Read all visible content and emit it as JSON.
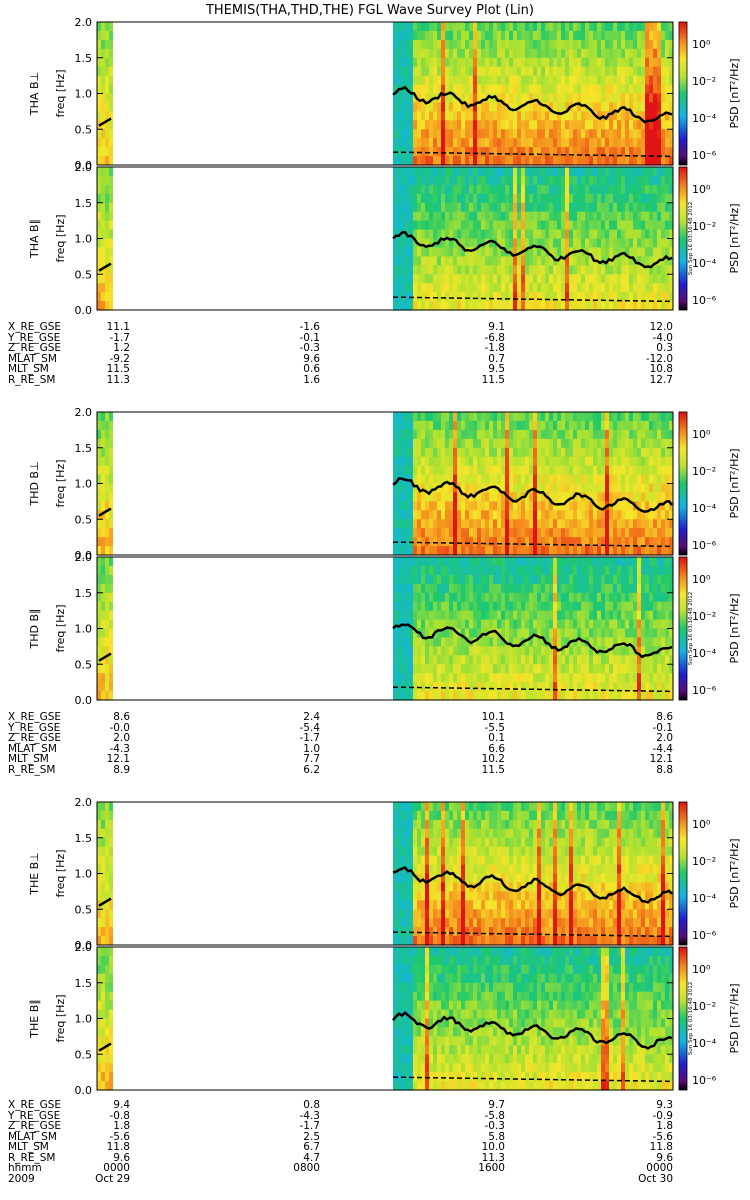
{
  "title": "THEMIS(THA,THD,THE) FGL Wave Survey Plot (Lin)",
  "colors": {
    "panel_border": "#000000",
    "trace": "#000000"
  },
  "chart_data": {
    "type": "heatmap",
    "x_axis": {
      "ticks": [
        "0000",
        "0800",
        "1600",
        "0000"
      ],
      "unit_label": "hhmm",
      "date_label_left": "2009",
      "dates": [
        "Oct 29",
        "Oct 30"
      ]
    },
    "colorbar": {
      "label": "PSD [nT²/Hz]",
      "tick_labels": [
        "10⁰",
        "10⁻²",
        "10⁻⁴",
        "10⁻⁶"
      ],
      "scale": "log",
      "stamp": "Sun Sep 16 03:16:48 2012"
    },
    "panels": [
      {
        "ylabel_probe": "THA B⊥",
        "ylabel_axis": "freq [Hz]",
        "ylim": [
          0,
          2.0
        ],
        "yticks": [
          "0.0",
          "0.5",
          "1.0",
          "1.5",
          "2.0"
        ],
        "kind": "perp",
        "stamp": false
      },
      {
        "ylabel_probe": "THA B∥",
        "ylabel_axis": "freq [Hz]",
        "ylim": [
          0,
          2.0
        ],
        "yticks": [
          "0.0",
          "0.5",
          "1.0",
          "1.5",
          "2.0"
        ],
        "kind": "par",
        "stamp": true
      },
      {
        "ylabel_probe": "THD B⊥",
        "ylabel_axis": "freq [Hz]",
        "ylim": [
          0,
          2.0
        ],
        "yticks": [
          "0.0",
          "0.5",
          "1.0",
          "1.5",
          "2.0"
        ],
        "kind": "perp",
        "stamp": false
      },
      {
        "ylabel_probe": "THD B∥",
        "ylabel_axis": "freq [Hz]",
        "ylim": [
          0,
          2.0
        ],
        "yticks": [
          "0.0",
          "0.5",
          "1.0",
          "1.5",
          "2.0"
        ],
        "kind": "par",
        "stamp": true
      },
      {
        "ylabel_probe": "THE B⊥",
        "ylabel_axis": "freq [Hz]",
        "ylim": [
          0,
          2.0
        ],
        "yticks": [
          "0.0",
          "0.5",
          "1.0",
          "1.5",
          "2.0"
        ],
        "kind": "perp",
        "stamp": false
      },
      {
        "ylabel_probe": "THE B∥",
        "ylabel_axis": "freq [Hz]",
        "ylim": [
          0,
          2.0
        ],
        "yticks": [
          "0.0",
          "0.5",
          "1.0",
          "1.5",
          "2.0"
        ],
        "kind": "par",
        "stamp": true
      }
    ],
    "ephemeris": [
      {
        "probe": "THA",
        "rows": [
          {
            "name": "X_RE_GSE",
            "values": [
              "11.1",
              "-1.6",
              "9.1",
              "12.0"
            ]
          },
          {
            "name": "Y_RE_GSE",
            "values": [
              "-1.7",
              "-0.1",
              "-6.8",
              "-4.0"
            ]
          },
          {
            "name": "Z_RE_GSE",
            "values": [
              "1.2",
              "-0.3",
              "-1.8",
              "0.3"
            ]
          },
          {
            "name": "MLAT_SM",
            "values": [
              "-9.2",
              "9.6",
              "0.7",
              "-12.0"
            ]
          },
          {
            "name": "MLT_SM",
            "values": [
              "11.5",
              "0.6",
              "9.5",
              "10.8"
            ]
          },
          {
            "name": "R_RE_SM",
            "values": [
              "11.3",
              "1.6",
              "11.5",
              "12.7"
            ]
          }
        ]
      },
      {
        "probe": "THD",
        "rows": [
          {
            "name": "X_RE_GSE",
            "values": [
              "8.6",
              "2.4",
              "10.1",
              "8.6"
            ]
          },
          {
            "name": "Y_RE_GSE",
            "values": [
              "-0.0",
              "-5.4",
              "-5.5",
              "-0.1"
            ]
          },
          {
            "name": "Z_RE_GSE",
            "values": [
              "2.0",
              "-1.7",
              "0.1",
              "2.0"
            ]
          },
          {
            "name": "MLAT_SM",
            "values": [
              "-4.3",
              "1.0",
              "6.6",
              "-4.4"
            ]
          },
          {
            "name": "MLT_SM",
            "values": [
              "12.1",
              "7.7",
              "10.2",
              "12.1"
            ]
          },
          {
            "name": "R_RE_SM",
            "values": [
              "8.9",
              "6.2",
              "11.5",
              "8.8"
            ]
          }
        ]
      },
      {
        "probe": "THE",
        "rows": [
          {
            "name": "X_RE_GSE",
            "values": [
              "9.4",
              "0.8",
              "9.7",
              "9.3"
            ]
          },
          {
            "name": "Y_RE_GSE",
            "values": [
              "-0.8",
              "-4.3",
              "-5.8",
              "-0.9"
            ]
          },
          {
            "name": "Z_RE_GSE",
            "values": [
              "1.8",
              "-1.7",
              "-0.3",
              "1.8"
            ]
          },
          {
            "name": "MLAT_SM",
            "values": [
              "-5.6",
              "2.5",
              "5.8",
              "-5.6"
            ]
          },
          {
            "name": "MLT_SM",
            "values": [
              "11.8",
              "6.7",
              "10.0",
              "11.8"
            ]
          },
          {
            "name": "R_RE_SM",
            "values": [
              "9.6",
              "4.7",
              "11.3",
              "9.6"
            ]
          }
        ]
      }
    ]
  }
}
